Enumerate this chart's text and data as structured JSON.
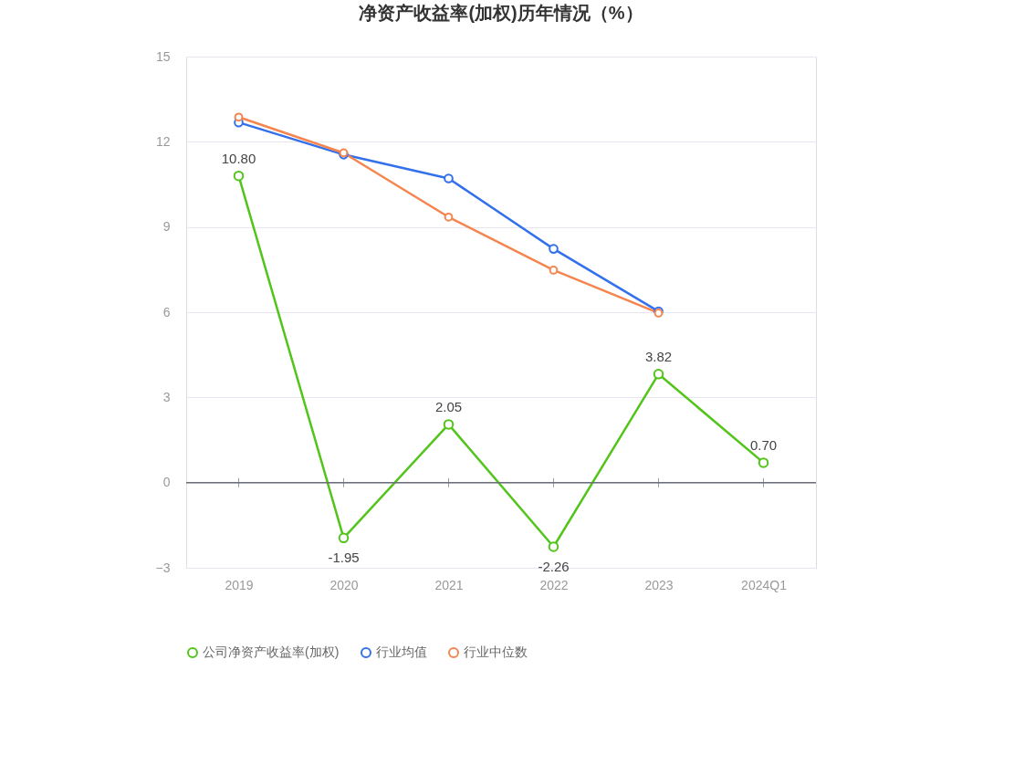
{
  "chart_data": {
    "type": "line",
    "title": "净资产收益率(加权)历年情况（%）",
    "categories": [
      "2019",
      "2020",
      "2021",
      "2022",
      "2023",
      "2024Q1"
    ],
    "series": [
      {
        "name": "公司净资产收益率(加权)",
        "color": "#52c41a",
        "values": [
          10.8,
          -1.95,
          2.05,
          -2.26,
          3.82,
          0.7
        ],
        "value_labels": [
          "10.80",
          "-1.95",
          "2.05",
          "-2.26",
          "3.82",
          "0.70"
        ]
      },
      {
        "name": "行业均值",
        "color": "#3370eb",
        "values": [
          12.68,
          11.55,
          10.71,
          8.23,
          6.03,
          null
        ]
      },
      {
        "name": "行业中位数",
        "color": "#f5854f",
        "values": [
          12.87,
          11.61,
          9.35,
          7.48,
          5.97,
          null
        ]
      }
    ],
    "ylim": [
      -3,
      15
    ],
    "yticks": [
      -3,
      0,
      3,
      6,
      9,
      12,
      15
    ],
    "grid": "y",
    "legend": "bottom",
    "marker": "circle",
    "line_style": "solid"
  }
}
